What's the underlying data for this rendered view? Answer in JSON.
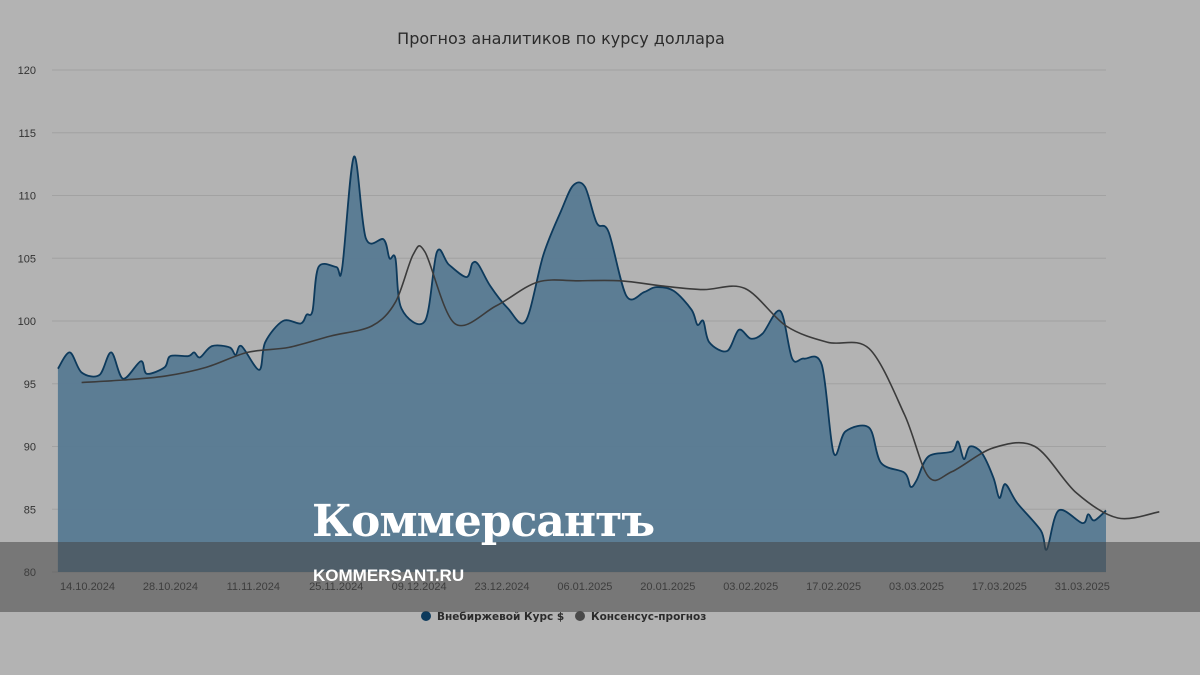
{
  "chart_data": {
    "type": "area",
    "title": "Прогноз аналитиков по курсу доллара",
    "ylim": [
      80,
      120
    ],
    "yticks": [
      80,
      85,
      90,
      95,
      100,
      105,
      110,
      115,
      120
    ],
    "xlim": [
      "2024-10-08",
      "2025-04-04"
    ],
    "xticks": [
      "14.10.2024",
      "28.10.2024",
      "11.11.2024",
      "25.11.2024",
      "09.12.2024",
      "23.12.2024",
      "06.01.2025",
      "20.01.2025",
      "03.02.2025",
      "17.02.2025",
      "03.03.2025",
      "17.03.2025",
      "31.03.2025"
    ],
    "grid": true,
    "legend_position": "bottom",
    "series": [
      {
        "name": "Внебиржевой Курс $",
        "kind": "area",
        "color": "#577a92",
        "line_color": "#0d3a5c",
        "points": [
          [
            "2024-10-09",
            96.2
          ],
          [
            "2024-10-11",
            97.5
          ],
          [
            "2024-10-13",
            95.9
          ],
          [
            "2024-10-16",
            95.7
          ],
          [
            "2024-10-18",
            97.5
          ],
          [
            "2024-10-20",
            95.4
          ],
          [
            "2024-10-23",
            96.8
          ],
          [
            "2024-10-24",
            95.8
          ],
          [
            "2024-10-27",
            96.3
          ],
          [
            "2024-10-28",
            97.2
          ],
          [
            "2024-10-31",
            97.2
          ],
          [
            "2024-11-01",
            97.5
          ],
          [
            "2024-11-02",
            97.1
          ],
          [
            "2024-11-04",
            98.0
          ],
          [
            "2024-11-07",
            97.9
          ],
          [
            "2024-11-08",
            97.3
          ],
          [
            "2024-11-09",
            98.0
          ],
          [
            "2024-11-12",
            96.1
          ],
          [
            "2024-11-13",
            98.3
          ],
          [
            "2024-11-16",
            100.0
          ],
          [
            "2024-11-19",
            99.8
          ],
          [
            "2024-11-20",
            100.5
          ],
          [
            "2024-11-21",
            100.8
          ],
          [
            "2024-11-22",
            104.3
          ],
          [
            "2024-11-25",
            104.3
          ],
          [
            "2024-11-26",
            104.2
          ],
          [
            "2024-11-28",
            113.1
          ],
          [
            "2024-11-30",
            106.6
          ],
          [
            "2024-12-03",
            106.5
          ],
          [
            "2024-12-04",
            105.0
          ],
          [
            "2024-12-05",
            105.0
          ],
          [
            "2024-12-06",
            101.0
          ],
          [
            "2024-12-10",
            100.0
          ],
          [
            "2024-12-12",
            105.5
          ],
          [
            "2024-12-14",
            104.5
          ],
          [
            "2024-12-17",
            103.5
          ],
          [
            "2024-12-18",
            104.6
          ],
          [
            "2024-12-19",
            104.5
          ],
          [
            "2024-12-21",
            102.8
          ],
          [
            "2024-12-24",
            101.0
          ],
          [
            "2024-12-27",
            100.0
          ],
          [
            "2024-12-30",
            105.3
          ],
          [
            "2025-01-02",
            108.8
          ],
          [
            "2025-01-04",
            110.8
          ],
          [
            "2025-01-06",
            110.7
          ],
          [
            "2025-01-08",
            107.8
          ],
          [
            "2025-01-10",
            107.1
          ],
          [
            "2025-01-13",
            102.0
          ],
          [
            "2025-01-16",
            102.3
          ],
          [
            "2025-01-18",
            102.7
          ],
          [
            "2025-01-21",
            102.4
          ],
          [
            "2025-01-24",
            100.9
          ],
          [
            "2025-01-25",
            99.7
          ],
          [
            "2025-01-26",
            100.0
          ],
          [
            "2025-01-27",
            98.3
          ],
          [
            "2025-01-30",
            97.6
          ],
          [
            "2025-02-01",
            99.3
          ],
          [
            "2025-02-03",
            98.6
          ],
          [
            "2025-02-05",
            99.0
          ],
          [
            "2025-02-08",
            100.8
          ],
          [
            "2025-02-10",
            97.0
          ],
          [
            "2025-02-12",
            97.0
          ],
          [
            "2025-02-15",
            96.5
          ],
          [
            "2025-02-17",
            89.5
          ],
          [
            "2025-02-19",
            91.2
          ],
          [
            "2025-02-23",
            91.5
          ],
          [
            "2025-02-25",
            88.7
          ],
          [
            "2025-03-01",
            87.9
          ],
          [
            "2025-03-02",
            86.8
          ],
          [
            "2025-03-03",
            87.3
          ],
          [
            "2025-03-05",
            89.2
          ],
          [
            "2025-03-09",
            89.6
          ],
          [
            "2025-03-10",
            90.4
          ],
          [
            "2025-03-11",
            89.0
          ],
          [
            "2025-03-12",
            90.0
          ],
          [
            "2025-03-14",
            89.5
          ],
          [
            "2025-03-16",
            87.5
          ],
          [
            "2025-03-17",
            85.9
          ],
          [
            "2025-03-18",
            87.0
          ],
          [
            "2025-03-20",
            85.5
          ],
          [
            "2025-03-24",
            83.3
          ],
          [
            "2025-03-25",
            81.8
          ],
          [
            "2025-03-27",
            84.9
          ],
          [
            "2025-03-31",
            83.9
          ],
          [
            "2025-04-01",
            84.6
          ],
          [
            "2025-04-02",
            84.1
          ],
          [
            "2025-04-04",
            84.9
          ]
        ]
      },
      {
        "name": "Консенсус-прогноз",
        "kind": "line",
        "color": "#3b3b3b",
        "points": [
          [
            "2024-10-13",
            95.1
          ],
          [
            "2024-10-20",
            95.3
          ],
          [
            "2024-10-27",
            95.6
          ],
          [
            "2024-11-03",
            96.3
          ],
          [
            "2024-11-10",
            97.5
          ],
          [
            "2024-11-17",
            97.9
          ],
          [
            "2024-11-24",
            98.8
          ],
          [
            "2024-12-01",
            99.6
          ],
          [
            "2024-12-05",
            101.5
          ],
          [
            "2024-12-08",
            105.3
          ],
          [
            "2024-12-10",
            105.5
          ],
          [
            "2024-12-15",
            99.8
          ],
          [
            "2024-12-22",
            101.2
          ],
          [
            "2024-12-29",
            103.1
          ],
          [
            "2025-01-05",
            103.2
          ],
          [
            "2025-01-12",
            103.2
          ],
          [
            "2025-01-19",
            102.8
          ],
          [
            "2025-01-26",
            102.5
          ],
          [
            "2025-02-02",
            102.6
          ],
          [
            "2025-02-09",
            99.6
          ],
          [
            "2025-02-16",
            98.3
          ],
          [
            "2025-02-23",
            97.8
          ],
          [
            "2025-03-01",
            92.5
          ],
          [
            "2025-03-05",
            87.6
          ],
          [
            "2025-03-09",
            88.0
          ],
          [
            "2025-03-16",
            89.9
          ],
          [
            "2025-03-23",
            90.0
          ],
          [
            "2025-03-30",
            86.3
          ],
          [
            "2025-04-06",
            84.3
          ],
          [
            "2025-04-13",
            84.8
          ]
        ]
      }
    ]
  },
  "watermark": {
    "logo": "Коммерсантъ",
    "domain": "KOMMERSANT.RU"
  }
}
